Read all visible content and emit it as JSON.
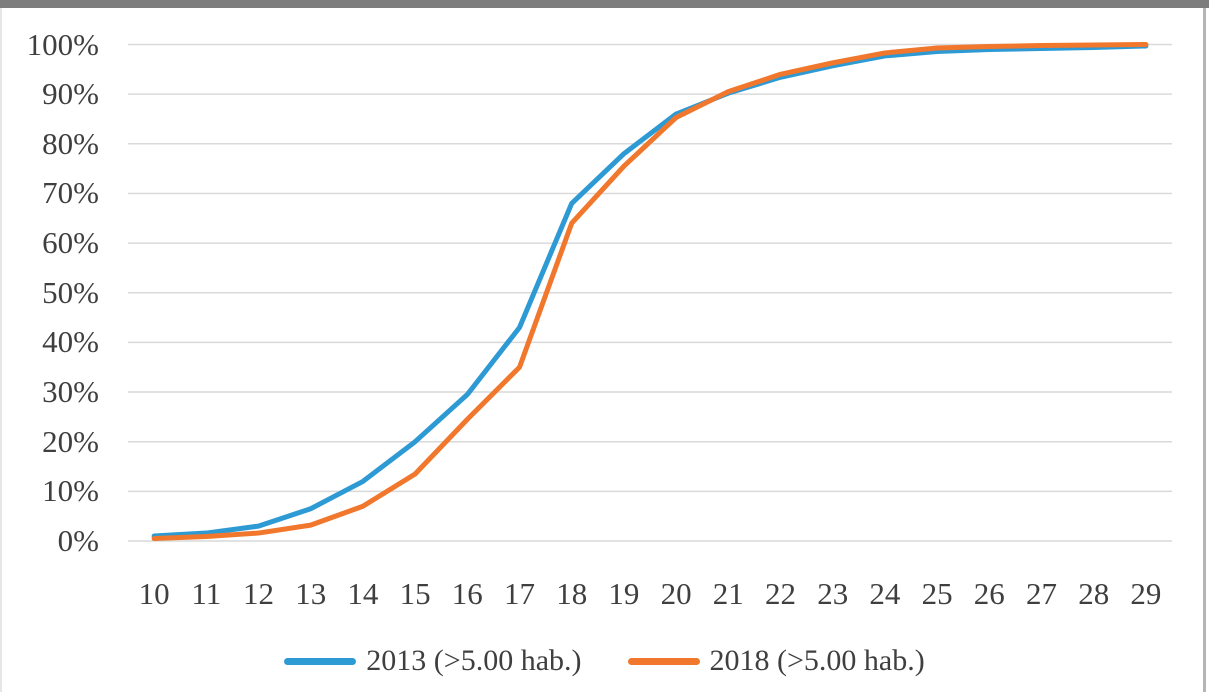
{
  "frame": {
    "background": "#ffffff",
    "top_bar_color": "#7d7d7d",
    "right_border_color": "#b5b5b5",
    "text_color": "#3f3f3f",
    "gridline_color": "#d9d9d9"
  },
  "chart_data": {
    "type": "line",
    "title": "",
    "xlabel": "",
    "ylabel": "",
    "x": [
      10,
      11,
      12,
      13,
      14,
      15,
      16,
      17,
      18,
      19,
      20,
      21,
      22,
      23,
      24,
      25,
      26,
      27,
      28,
      29
    ],
    "series": [
      {
        "name": "2013 (>5.00 hab.)",
        "color": "#2E9AD4",
        "values": [
          1.0,
          1.6,
          3.0,
          6.5,
          12.0,
          20.0,
          29.5,
          43.0,
          68.0,
          78.0,
          86.0,
          90.2,
          93.4,
          95.7,
          97.7,
          98.6,
          99.0,
          99.2,
          99.4,
          99.7
        ]
      },
      {
        "name": "2018 (>5.00 hab.)",
        "color": "#F0772C",
        "values": [
          0.5,
          0.9,
          1.6,
          3.2,
          7.0,
          13.5,
          24.5,
          35.0,
          64.0,
          75.5,
          85.3,
          90.5,
          94.0,
          96.3,
          98.3,
          99.3,
          99.6,
          99.8,
          99.9,
          100.0
        ]
      }
    ],
    "yticks": [
      "0%",
      "10%",
      "20%",
      "30%",
      "40%",
      "50%",
      "60%",
      "70%",
      "80%",
      "90%",
      "100%"
    ],
    "ylim": [
      0,
      100
    ],
    "grid": "horizontal",
    "legend_position": "bottom-center",
    "line_width": 5
  }
}
